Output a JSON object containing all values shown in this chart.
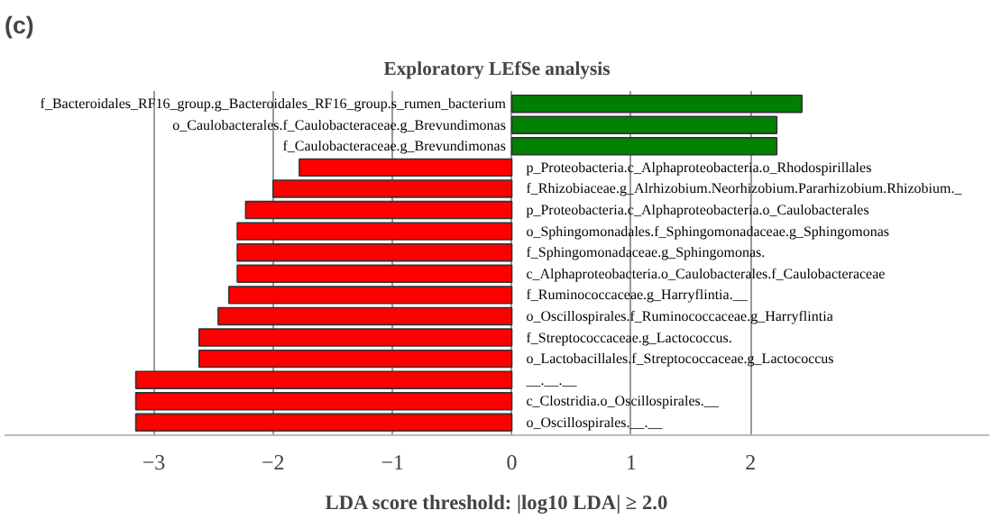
{
  "chart_data": {
    "type": "bar",
    "orientation": "horizontal",
    "title": "Exploratory LEfSe analysis",
    "xlabel": "LDA score threshold: |log10 LDA| ≥ 2.0",
    "annotations": [
      "(c)"
    ],
    "categories": [
      "f_Bacteroidales_RF16_group.g_Bacteroidales_RF16_group.s_rumen_bacterium",
      "o_Caulobacterales.f_Caulobacteraceae.g_Brevundimonas",
      "f_Caulobacteraceae.g_Brevundimonas",
      "p_Proteobacteria.c_Alphaproteobacteria.o_Rhodospirillales",
      "f_Rhizobiaceae.g_Alrhizobium.Neorhizobium.Pararhizobium.Rhizobium._",
      "p_Proteobacteria.c_Alphaproteobacteria.o_Caulobacterales",
      "o_Sphingomonadales.f_Sphingomonadaceae.g_Sphingomonas",
      "f_Sphingomonadaceae.g_Sphingomonas.",
      "c_Alphaproteobacteria.o_Caulobacterales.f_Caulobacteraceae",
      "f_Ruminococcaceae.g_Harryflintia.__",
      "o_Oscillospirales.f_Ruminococcaceae.g_Harryflintia",
      "f_Streptococcaceae.g_Lactococcus.",
      "o_Lactobacillales.f_Streptococcaceae.g_Lactococcus",
      "__.__.__",
      "c_Clostridia.o_Oscillospirales.__",
      "o_Oscillospirales.__.__"
    ],
    "values": [
      2.43,
      2.22,
      2.22,
      -1.78,
      -2.0,
      -2.23,
      -2.3,
      -2.3,
      -2.3,
      -2.37,
      -2.46,
      -2.62,
      -2.62,
      -3.15,
      -3.15,
      -3.15
    ],
    "colors": [
      "#008000",
      "#008000",
      "#008000",
      "#ff0000",
      "#ff0000",
      "#ff0000",
      "#ff0000",
      "#ff0000",
      "#ff0000",
      "#ff0000",
      "#ff0000",
      "#ff0000",
      "#ff0000",
      "#ff0000",
      "#ff0000",
      "#ff0000"
    ],
    "xlim": [
      -4.25,
      4.0
    ],
    "xticks": [
      {
        "value": -3,
        "label": "−3"
      },
      {
        "value": -2,
        "label": "−2"
      },
      {
        "value": -1,
        "label": "−1"
      },
      0,
      1,
      2
    ],
    "grid": "x"
  }
}
